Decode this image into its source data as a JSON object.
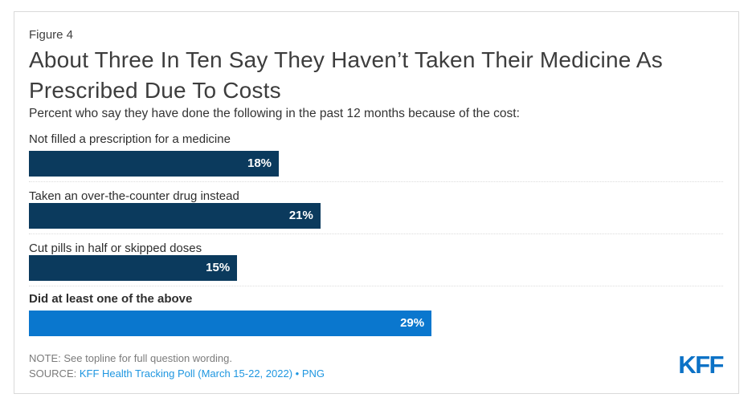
{
  "card": {
    "figure_label": "Figure 4",
    "title": "About Three In Ten Say They Haven’t Taken Their Medicine As Prescribed Due To Costs",
    "subtitle": "Percent who say they have done the following in the past 12 months because of the cost:",
    "note_prefix": "NOTE:",
    "note_text": "See topline for full question wording.",
    "source_prefix": "SOURCE:",
    "source_link": "KFF Health Tracking Poll (March 15-22, 2022)",
    "source_separator": "•",
    "source_png_label": "PNG",
    "logo_text": "KFF"
  },
  "colors": {
    "navy_bar": "#0b3a5d",
    "blue_bar": "#0a77ce",
    "link_blue": "#1e96e0",
    "logo_blue": "#0c72c6",
    "note_gray": "#7b7b7b",
    "card_border": "#d9d9d9"
  },
  "chart_data": {
    "type": "bar",
    "orientation": "horizontal",
    "title": "About Three In Ten Say They Haven’t Taken Their Medicine As Prescribed Due To Costs",
    "subtitle": "Percent who say they have done the following in the past 12 months because of the cost:",
    "xlim": [
      0,
      50
    ],
    "grid": false,
    "legend": false,
    "categories": [
      "Not filled a prescription for a medicine",
      "Taken an over-the-counter drug instead",
      "Cut pills in half or skipped doses",
      "Did at least one of the above"
    ],
    "values": [
      18,
      21,
      15,
      29
    ],
    "rows": [
      {
        "label": "Not filled a prescription for a medicine",
        "value": 18,
        "value_label": "18%",
        "color": "#0b3a5d",
        "emphasis": false
      },
      {
        "label": "Taken an over-the-counter drug instead",
        "value": 21,
        "value_label": "21%",
        "color": "#0b3a5d",
        "emphasis": false
      },
      {
        "label": "Cut pills in half or skipped doses",
        "value": 15,
        "value_label": "15%",
        "color": "#0b3a5d",
        "emphasis": false
      },
      {
        "label": "Did at least one of the above",
        "value": 29,
        "value_label": "29%",
        "color": "#0a77ce",
        "emphasis": true
      }
    ]
  }
}
